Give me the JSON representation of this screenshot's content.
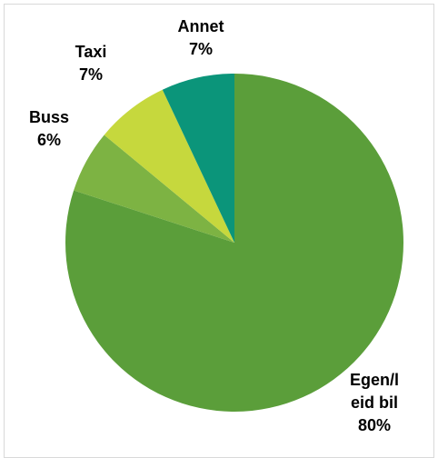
{
  "chart_data": {
    "type": "pie",
    "slices": [
      {
        "category": "Egen/l",
        "category_line2": "eid bil",
        "value": 80,
        "label": "80%",
        "color": "#5b9e3a"
      },
      {
        "category": "Buss",
        "value": 6,
        "label": "6%",
        "color": "#7db343"
      },
      {
        "category": "Taxi",
        "value": 7,
        "label": "7%",
        "color": "#c6d83d"
      },
      {
        "category": "Annet",
        "value": 7,
        "label": "7%",
        "color": "#0b957a"
      }
    ],
    "legend": "none",
    "start": "12 o'clock",
    "direction": "clockwise"
  }
}
